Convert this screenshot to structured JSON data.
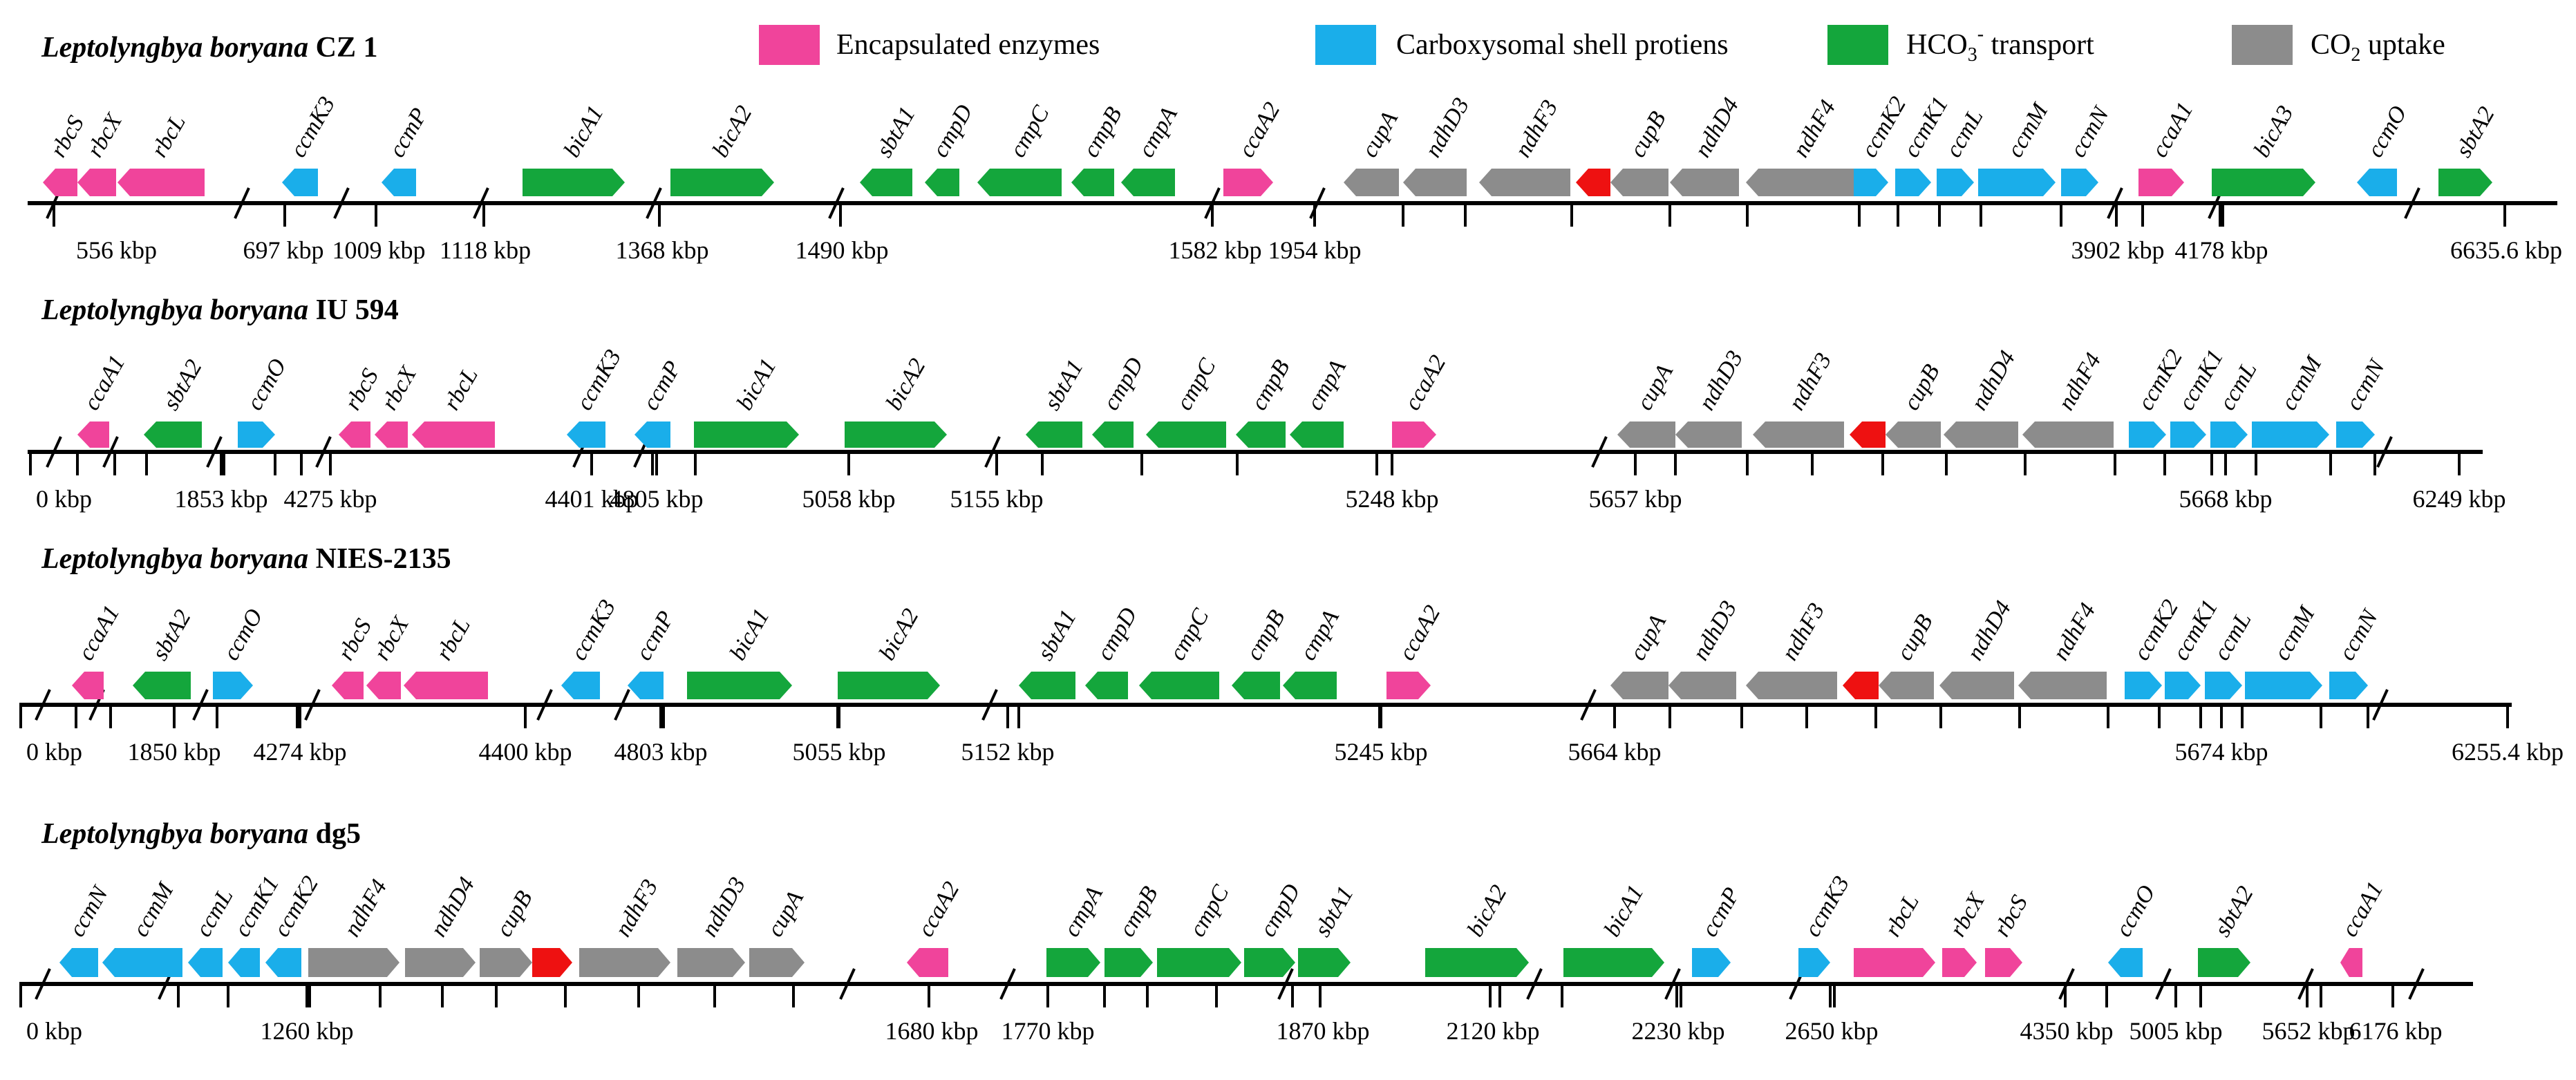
{
  "figure": {
    "colors": {
      "encapsulated": "#f0449b",
      "shell": "#1aaeea",
      "bicarb": "#14a63c",
      "co2": "#8c8c8c",
      "red": "#ee1111",
      "axis": "#000000"
    },
    "legend": [
      {
        "label": "Encapsulated enzymes",
        "color": "#f0449b"
      },
      {
        "label": "Carboxysomal shell protiens",
        "color": "#1aaeea"
      },
      {
        "label_pre": "HCO",
        "label_sub": "3",
        "label_sup": "-",
        "label_post": " transport",
        "color": "#14a63c"
      },
      {
        "label_pre": "CO",
        "label_sub": "2",
        "label_post": " uptake",
        "color": "#8c8c8c"
      }
    ],
    "genomes": [
      {
        "species": "Leptolyngbya boryana",
        "strain": "CZ 1",
        "genes": [
          {
            "name": "rbcS",
            "cat": "encapsulated",
            "dir": "L"
          },
          {
            "name": "rbcX",
            "cat": "encapsulated",
            "dir": "L"
          },
          {
            "name": "rbcL",
            "cat": "encapsulated",
            "dir": "L"
          },
          {
            "name": "ccmK3",
            "cat": "shell",
            "dir": "L"
          },
          {
            "name": "ccmP",
            "cat": "shell",
            "dir": "L"
          },
          {
            "name": "bicA1",
            "cat": "bicarb",
            "dir": "R"
          },
          {
            "name": "bicA2",
            "cat": "bicarb",
            "dir": "R"
          },
          {
            "name": "sbtA1",
            "cat": "bicarb",
            "dir": "L"
          },
          {
            "name": "cmpD",
            "cat": "bicarb",
            "dir": "L"
          },
          {
            "name": "cmpC",
            "cat": "bicarb",
            "dir": "L"
          },
          {
            "name": "cmpB",
            "cat": "bicarb",
            "dir": "L"
          },
          {
            "name": "cmpA",
            "cat": "bicarb",
            "dir": "L"
          },
          {
            "name": "ccaA2",
            "cat": "encapsulated",
            "dir": "R"
          },
          {
            "name": "cupA",
            "cat": "co2",
            "dir": "L"
          },
          {
            "name": "ndhD3",
            "cat": "co2",
            "dir": "L"
          },
          {
            "name": "ndhF3",
            "cat": "co2",
            "dir": "L"
          },
          {
            "name": "",
            "cat": "red",
            "dir": "L"
          },
          {
            "name": "cupB",
            "cat": "co2",
            "dir": "L"
          },
          {
            "name": "ndhD4",
            "cat": "co2",
            "dir": "L"
          },
          {
            "name": "ndhF4",
            "cat": "co2",
            "dir": "L"
          },
          {
            "name": "ccmK2",
            "cat": "shell",
            "dir": "R"
          },
          {
            "name": "ccmK1",
            "cat": "shell",
            "dir": "R"
          },
          {
            "name": "ccmL",
            "cat": "shell",
            "dir": "R"
          },
          {
            "name": "ccmM",
            "cat": "shell",
            "dir": "R"
          },
          {
            "name": "ccmN",
            "cat": "shell",
            "dir": "R"
          },
          {
            "name": "ccaA1",
            "cat": "encapsulated",
            "dir": "R"
          },
          {
            "name": "bicA3",
            "cat": "bicarb",
            "dir": "R"
          },
          {
            "name": "ccmO",
            "cat": "shell",
            "dir": "L"
          },
          {
            "name": "sbtA2",
            "cat": "bicarb",
            "dir": "R"
          }
        ],
        "ticks": [
          "556 kbp",
          "697 kbp",
          "1009 kbp",
          "1118 kbp",
          "1368 kbp",
          "1490 kbp",
          "1582 kbp",
          "1954 kbp",
          "3902 kbp",
          "4178 kbp",
          "6635.6 kbp"
        ]
      },
      {
        "species": "Leptolyngbya boryana",
        "strain": "IU 594",
        "genes": [
          {
            "name": "ccaA1",
            "cat": "encapsulated",
            "dir": "L"
          },
          {
            "name": "sbtA2",
            "cat": "bicarb",
            "dir": "L"
          },
          {
            "name": "ccmO",
            "cat": "shell",
            "dir": "R"
          },
          {
            "name": "rbcS",
            "cat": "encapsulated",
            "dir": "L"
          },
          {
            "name": "rbcX",
            "cat": "encapsulated",
            "dir": "L"
          },
          {
            "name": "rbcL",
            "cat": "encapsulated",
            "dir": "L"
          },
          {
            "name": "ccmK3",
            "cat": "shell",
            "dir": "L"
          },
          {
            "name": "ccmP",
            "cat": "shell",
            "dir": "L"
          },
          {
            "name": "bicA1",
            "cat": "bicarb",
            "dir": "R"
          },
          {
            "name": "bicA2",
            "cat": "bicarb",
            "dir": "R"
          },
          {
            "name": "sbtA1",
            "cat": "bicarb",
            "dir": "L"
          },
          {
            "name": "cmpD",
            "cat": "bicarb",
            "dir": "L"
          },
          {
            "name": "cmpC",
            "cat": "bicarb",
            "dir": "L"
          },
          {
            "name": "cmpB",
            "cat": "bicarb",
            "dir": "L"
          },
          {
            "name": "cmpA",
            "cat": "bicarb",
            "dir": "L"
          },
          {
            "name": "ccaA2",
            "cat": "encapsulated",
            "dir": "R"
          },
          {
            "name": "cupA",
            "cat": "co2",
            "dir": "L"
          },
          {
            "name": "ndhD3",
            "cat": "co2",
            "dir": "L"
          },
          {
            "name": "ndhF3",
            "cat": "co2",
            "dir": "L"
          },
          {
            "name": "",
            "cat": "red",
            "dir": "L"
          },
          {
            "name": "cupB",
            "cat": "co2",
            "dir": "L"
          },
          {
            "name": "ndhD4",
            "cat": "co2",
            "dir": "L"
          },
          {
            "name": "ndhF4",
            "cat": "co2",
            "dir": "L"
          },
          {
            "name": "ccmK2",
            "cat": "shell",
            "dir": "R"
          },
          {
            "name": "ccmK1",
            "cat": "shell",
            "dir": "R"
          },
          {
            "name": "ccmL",
            "cat": "shell",
            "dir": "R"
          },
          {
            "name": "ccmM",
            "cat": "shell",
            "dir": "R"
          },
          {
            "name": "ccmN",
            "cat": "shell",
            "dir": "R"
          }
        ],
        "ticks": [
          "0 kbp",
          "1853 kbp",
          "4275 kbp",
          "4401 kbp",
          "4805 kbp",
          "5058 kbp",
          "5155 kbp",
          "5248 kbp",
          "5657 kbp",
          "5668 kbp",
          "6249 kbp"
        ]
      },
      {
        "species": "Leptolyngbya boryana",
        "strain": "NIES-2135",
        "genes": [
          {
            "name": "ccaA1",
            "cat": "encapsulated",
            "dir": "L"
          },
          {
            "name": "sbtA2",
            "cat": "bicarb",
            "dir": "L"
          },
          {
            "name": "ccmO",
            "cat": "shell",
            "dir": "R"
          },
          {
            "name": "rbcS",
            "cat": "encapsulated",
            "dir": "L"
          },
          {
            "name": "rbcX",
            "cat": "encapsulated",
            "dir": "L"
          },
          {
            "name": "rbcL",
            "cat": "encapsulated",
            "dir": "L"
          },
          {
            "name": "ccmK3",
            "cat": "shell",
            "dir": "L"
          },
          {
            "name": "ccmP",
            "cat": "shell",
            "dir": "L"
          },
          {
            "name": "bicA1",
            "cat": "bicarb",
            "dir": "R"
          },
          {
            "name": "bicA2",
            "cat": "bicarb",
            "dir": "R"
          },
          {
            "name": "sbtA1",
            "cat": "bicarb",
            "dir": "L"
          },
          {
            "name": "cmpD",
            "cat": "bicarb",
            "dir": "L"
          },
          {
            "name": "cmpC",
            "cat": "bicarb",
            "dir": "L"
          },
          {
            "name": "cmpB",
            "cat": "bicarb",
            "dir": "L"
          },
          {
            "name": "cmpA",
            "cat": "bicarb",
            "dir": "L"
          },
          {
            "name": "ccaA2",
            "cat": "encapsulated",
            "dir": "R"
          },
          {
            "name": "cupA",
            "cat": "co2",
            "dir": "L"
          },
          {
            "name": "ndhD3",
            "cat": "co2",
            "dir": "L"
          },
          {
            "name": "ndhF3",
            "cat": "co2",
            "dir": "L"
          },
          {
            "name": "",
            "cat": "red",
            "dir": "L"
          },
          {
            "name": "cupB",
            "cat": "co2",
            "dir": "L"
          },
          {
            "name": "ndhD4",
            "cat": "co2",
            "dir": "L"
          },
          {
            "name": "ndhF4",
            "cat": "co2",
            "dir": "L"
          },
          {
            "name": "ccmK2",
            "cat": "shell",
            "dir": "R"
          },
          {
            "name": "ccmK1",
            "cat": "shell",
            "dir": "R"
          },
          {
            "name": "ccmL",
            "cat": "shell",
            "dir": "R"
          },
          {
            "name": "ccmM",
            "cat": "shell",
            "dir": "R"
          },
          {
            "name": "ccmN",
            "cat": "shell",
            "dir": "R"
          }
        ],
        "ticks": [
          "0 kbp",
          "1850 kbp",
          "4274 kbp",
          "4400 kbp",
          "4803 kbp",
          "5055 kbp",
          "5152 kbp",
          "5245 kbp",
          "5664 kbp",
          "5674 kbp",
          "6255.4 kbp"
        ]
      },
      {
        "species": "Leptolyngbya boryana",
        "strain": "dg5",
        "genes": [
          {
            "name": "ccmN",
            "cat": "shell",
            "dir": "L"
          },
          {
            "name": "ccmM",
            "cat": "shell",
            "dir": "L"
          },
          {
            "name": "ccmL",
            "cat": "shell",
            "dir": "L"
          },
          {
            "name": "ccmK1",
            "cat": "shell",
            "dir": "L"
          },
          {
            "name": "ccmK2",
            "cat": "shell",
            "dir": "L"
          },
          {
            "name": "ndhF4",
            "cat": "co2",
            "dir": "R"
          },
          {
            "name": "ndhD4",
            "cat": "co2",
            "dir": "R"
          },
          {
            "name": "cupB",
            "cat": "co2",
            "dir": "R"
          },
          {
            "name": "",
            "cat": "red",
            "dir": "R"
          },
          {
            "name": "ndhF3",
            "cat": "co2",
            "dir": "R"
          },
          {
            "name": "ndhD3",
            "cat": "co2",
            "dir": "R"
          },
          {
            "name": "cupA",
            "cat": "co2",
            "dir": "R"
          },
          {
            "name": "ccaA2",
            "cat": "encapsulated",
            "dir": "L"
          },
          {
            "name": "cmpA",
            "cat": "bicarb",
            "dir": "R"
          },
          {
            "name": "cmpB",
            "cat": "bicarb",
            "dir": "R"
          },
          {
            "name": "cmpC",
            "cat": "bicarb",
            "dir": "R"
          },
          {
            "name": "cmpD",
            "cat": "bicarb",
            "dir": "R"
          },
          {
            "name": "sbtA1",
            "cat": "bicarb",
            "dir": "R"
          },
          {
            "name": "bicA2",
            "cat": "bicarb",
            "dir": "R"
          },
          {
            "name": "bicA1",
            "cat": "bicarb",
            "dir": "R"
          },
          {
            "name": "ccmP",
            "cat": "shell",
            "dir": "R"
          },
          {
            "name": "ccmK3",
            "cat": "shell",
            "dir": "R"
          },
          {
            "name": "rbcL",
            "cat": "encapsulated",
            "dir": "R"
          },
          {
            "name": "rbcX",
            "cat": "encapsulated",
            "dir": "R"
          },
          {
            "name": "rbcS",
            "cat": "encapsulated",
            "dir": "R"
          },
          {
            "name": "ccmO",
            "cat": "shell",
            "dir": "L"
          },
          {
            "name": "sbtA2",
            "cat": "bicarb",
            "dir": "R"
          },
          {
            "name": "ccaA1",
            "cat": "encapsulated",
            "dir": "L"
          }
        ],
        "ticks": [
          "0 kbp",
          "1260 kbp",
          "1680 kbp",
          "1770 kbp",
          "1870 kbp",
          "2120 kbp",
          "2230 kbp",
          "2650 kbp",
          "4350 kbp",
          "5005 kbp",
          "5652 kbp",
          "6176 kbp"
        ]
      }
    ]
  }
}
